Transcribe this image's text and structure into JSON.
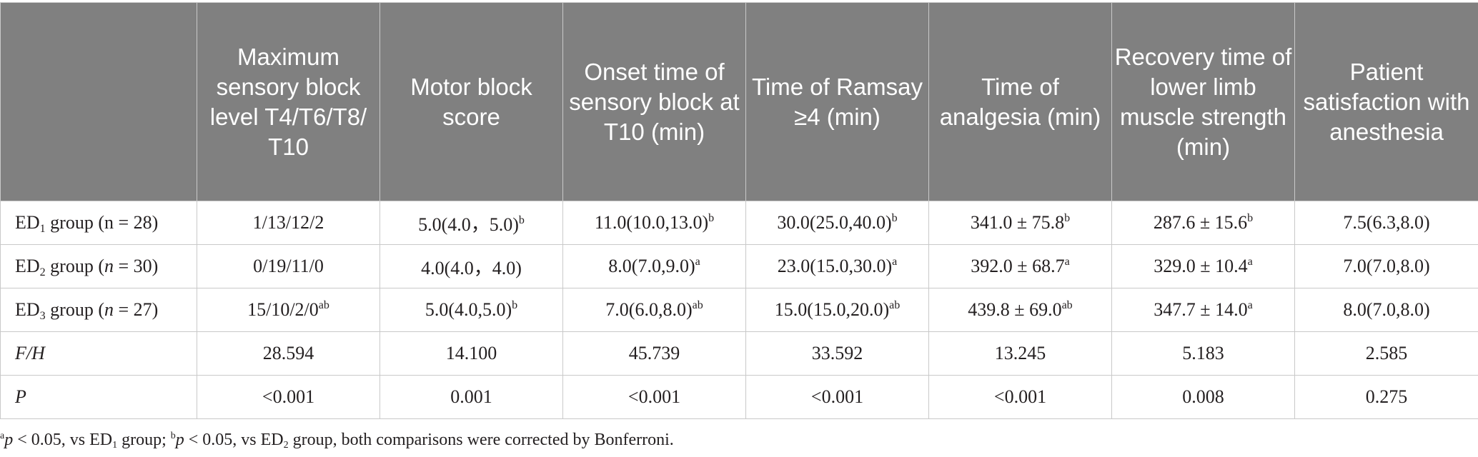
{
  "table": {
    "headers": [
      "",
      "Maximum sensory block level T4/T6/T8/ T10",
      "Motor block score",
      "Onset time of sensory block at T10 (min)",
      "Time of Ramsay ≥4 (min)",
      "Time of analgesia (min)",
      "Recovery time of lower limb muscle strength (min)",
      "Patient satisfaction with anesthesia"
    ],
    "rows": [
      {
        "label": {
          "pre": "ED",
          "sub": "1",
          "post": " group (n = 28)"
        },
        "cells": [
          {
            "text": "1/13/12/2",
            "sup": ""
          },
          {
            "text": "5.0(4.0，5.0)",
            "sup": "b"
          },
          {
            "text": "11.0(10.0,13.0)",
            "sup": "b"
          },
          {
            "text": "30.0(25.0,40.0)",
            "sup": "b"
          },
          {
            "text": "341.0 ± 75.8",
            "sup": "b"
          },
          {
            "text": "287.6 ± 15.6",
            "sup": "b"
          },
          {
            "text": "7.5(6.3,8.0)",
            "sup": ""
          }
        ]
      },
      {
        "label": {
          "pre": "ED",
          "sub": "2",
          "post": " group (",
          "ital": "n",
          "post2": " = 30)"
        },
        "cells": [
          {
            "text": "0/19/11/0",
            "sup": ""
          },
          {
            "text": "4.0(4.0，4.0)",
            "sup": ""
          },
          {
            "text": "8.0(7.0,9.0)",
            "sup": "a"
          },
          {
            "text": "23.0(15.0,30.0)",
            "sup": "a"
          },
          {
            "text": "392.0 ± 68.7",
            "sup": "a"
          },
          {
            "text": "329.0 ± 10.4",
            "sup": "a"
          },
          {
            "text": "7.0(7.0,8.0)",
            "sup": ""
          }
        ]
      },
      {
        "label": {
          "pre": "ED",
          "sub": "3",
          "post": " group (",
          "ital": "n",
          "post2": " = 27)"
        },
        "cells": [
          {
            "text": "15/10/2/0",
            "sup": "ab"
          },
          {
            "text": "5.0(4.0,5.0)",
            "sup": "b"
          },
          {
            "text": "7.0(6.0,8.0)",
            "sup": "ab"
          },
          {
            "text": "15.0(15.0,20.0)",
            "sup": "ab"
          },
          {
            "text": "439.8 ± 69.0",
            "sup": "ab"
          },
          {
            "text": "347.7 ± 14.0",
            "sup": "a"
          },
          {
            "text": "8.0(7.0,8.0)",
            "sup": ""
          }
        ]
      },
      {
        "label": {
          "ital": "F/H"
        },
        "cells": [
          {
            "text": "28.594",
            "sup": ""
          },
          {
            "text": "14.100",
            "sup": ""
          },
          {
            "text": "45.739",
            "sup": ""
          },
          {
            "text": "33.592",
            "sup": ""
          },
          {
            "text": "13.245",
            "sup": ""
          },
          {
            "text": "5.183",
            "sup": ""
          },
          {
            "text": "2.585",
            "sup": ""
          }
        ]
      },
      {
        "label": {
          "ital": "P"
        },
        "cells": [
          {
            "text": "<0.001",
            "sup": ""
          },
          {
            "text": "0.001",
            "sup": ""
          },
          {
            "text": "<0.001",
            "sup": ""
          },
          {
            "text": "<0.001",
            "sup": ""
          },
          {
            "text": "<0.001",
            "sup": ""
          },
          {
            "text": "0.008",
            "sup": ""
          },
          {
            "text": "0.275",
            "sup": ""
          }
        ]
      }
    ]
  },
  "footnote": {
    "a_mark": "a",
    "a_p": "p",
    "a_text": " < 0.05, vs ED",
    "a_sub": "1",
    "a_tail": " group; ",
    "b_mark": "b",
    "b_p": "p",
    "b_text": " < 0.05, vs ED",
    "b_sub": "2",
    "b_tail": " group, both comparisons were corrected by Bonferroni."
  }
}
